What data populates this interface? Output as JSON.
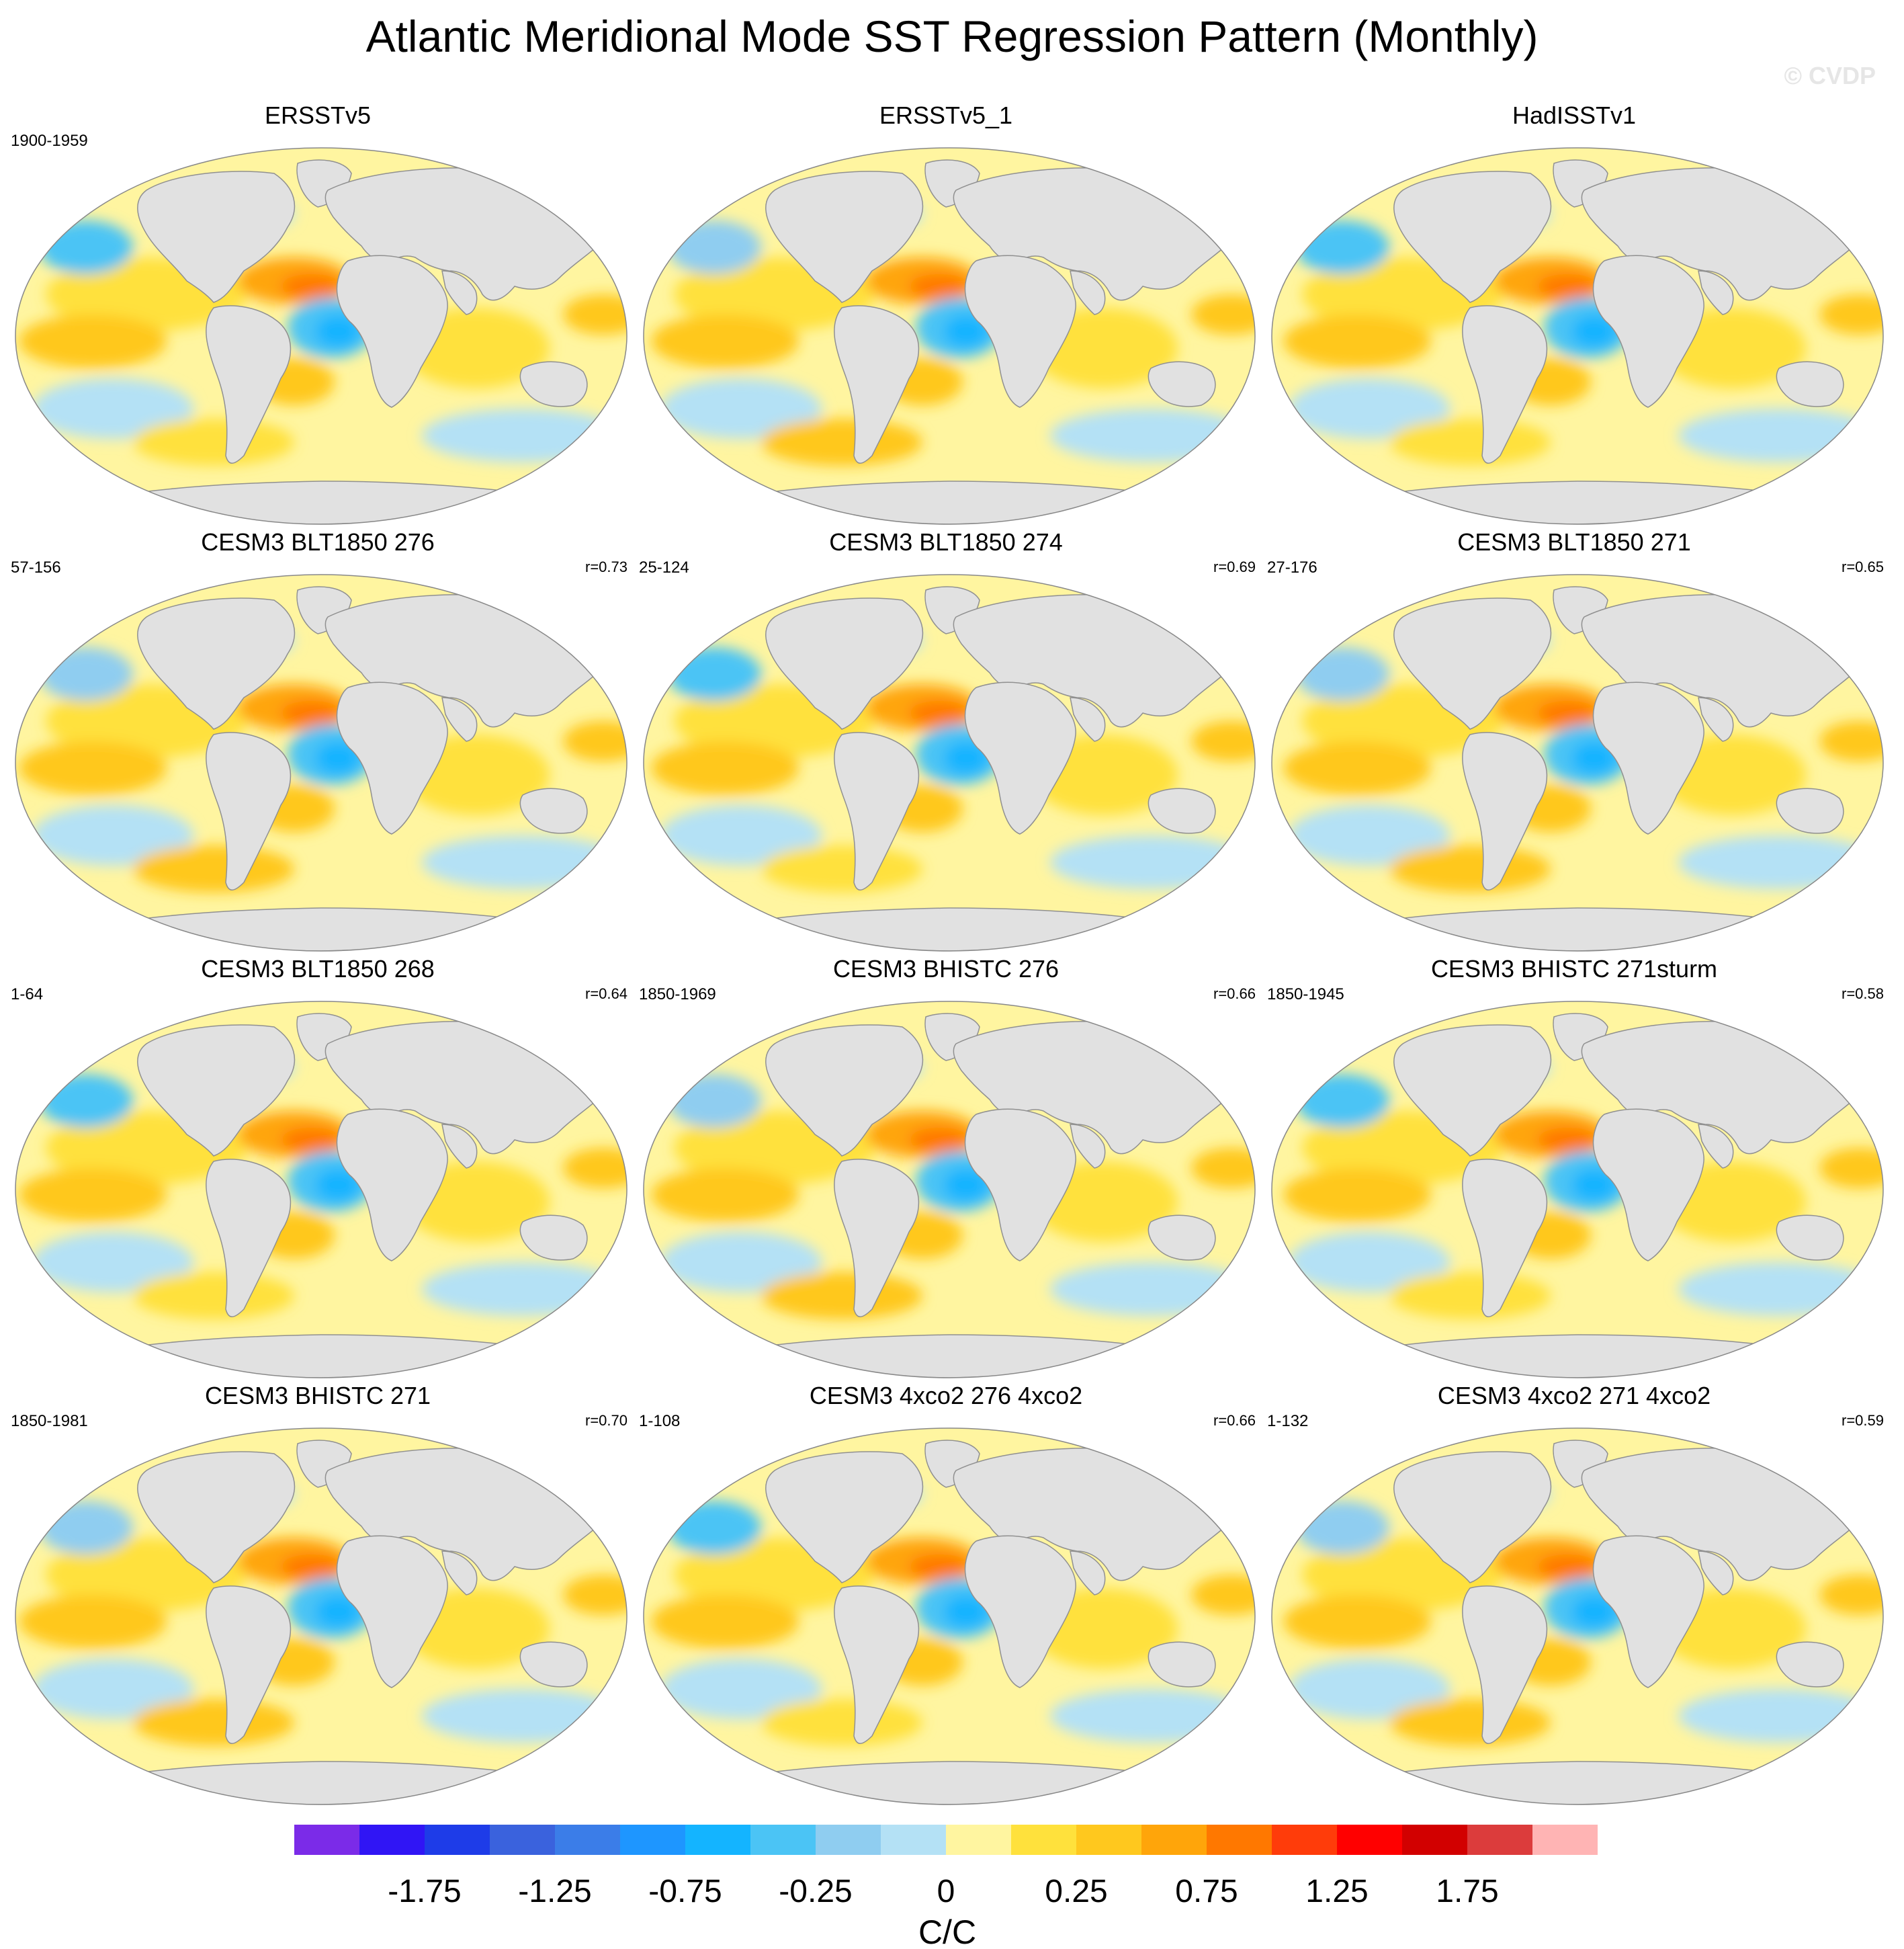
{
  "title": "Atlantic Meridional Mode SST Regression Pattern (Monthly)",
  "watermark": "© CVDP",
  "panels": [
    {
      "title": "ERSSTv5",
      "period": "1900-1959",
      "corr": ""
    },
    {
      "title": "ERSSTv5_1",
      "period": "",
      "corr": ""
    },
    {
      "title": "HadISSTv1",
      "period": "",
      "corr": ""
    },
    {
      "title": "CESM3 BLT1850 276",
      "period": "57-156",
      "corr": "r=0.73"
    },
    {
      "title": "CESM3 BLT1850 274",
      "period": "25-124",
      "corr": "r=0.69"
    },
    {
      "title": "CESM3 BLT1850 271",
      "period": "27-176",
      "corr": "r=0.65"
    },
    {
      "title": "CESM3 BLT1850 268",
      "period": "1-64",
      "corr": "r=0.64"
    },
    {
      "title": "CESM3 BHISTC 276",
      "period": "1850-1969",
      "corr": "r=0.66"
    },
    {
      "title": "CESM3 BHISTC 271sturm",
      "period": "1850-1945",
      "corr": "r=0.58"
    },
    {
      "title": "CESM3 BHISTC 271",
      "period": "1850-1981",
      "corr": "r=0.70"
    },
    {
      "title": "CESM3 4xco2 276 4xco2",
      "period": "1-108",
      "corr": "r=0.66"
    },
    {
      "title": "CESM3 4xco2 271 4xco2",
      "period": "1-132",
      "corr": "r=0.59"
    }
  ],
  "chart_data": {
    "type": "map",
    "projection": "Robinson (global)",
    "variable": "SST regression on Atlantic Meridional Mode index",
    "units": "C/C",
    "contour_levels": [
      -2.0,
      -1.75,
      -1.5,
      -1.25,
      -1.0,
      -0.75,
      -0.5,
      -0.25,
      -0.1,
      0,
      0.1,
      0.25,
      0.5,
      0.75,
      1.0,
      1.25,
      1.5,
      1.75,
      2.0
    ],
    "colorbar": {
      "colors": [
        "#7b2be8",
        "#3015f5",
        "#1e3ce8",
        "#3a62dd",
        "#3b7de8",
        "#1e96ff",
        "#14b4ff",
        "#4bc4f5",
        "#8fcdf0",
        "#b4e1f5",
        "#fff5a0",
        "#ffe13c",
        "#ffc81e",
        "#ffa50a",
        "#ff7800",
        "#ff3c0a",
        "#ff0000",
        "#d20000",
        "#dc3c3c",
        "#ffb4b4"
      ],
      "tick_labels": [
        "-1.75",
        "-1.25",
        "-0.75",
        "-0.25",
        "0",
        "0.25",
        "0.75",
        "1.25",
        "1.75"
      ],
      "label": "C/C"
    },
    "features": {
      "north_tropical_atlantic": "warm (+0.5 to +1.0)",
      "south_tropical_atlantic": "cold (-0.5 to -1.0)",
      "eastern_tropical_pacific": "warm (+0.25 to +0.5)"
    },
    "colors": {
      "land": "#e1e1e1",
      "coast": "#909090"
    }
  }
}
